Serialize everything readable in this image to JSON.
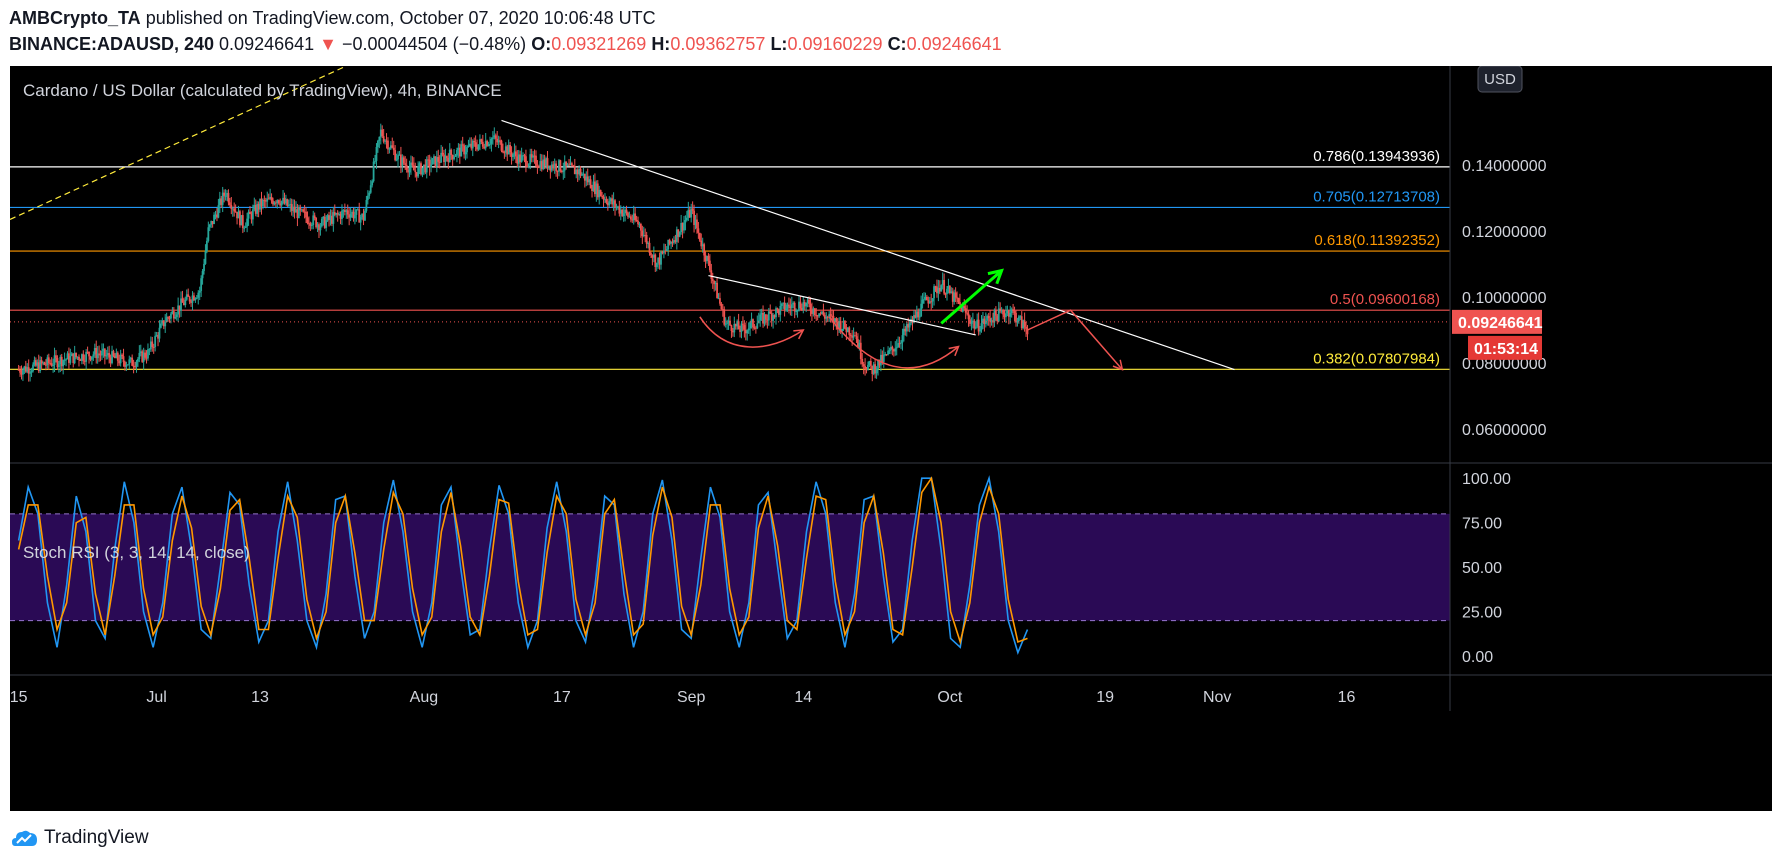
{
  "header": {
    "author": "AMBCrypto_TA",
    "published": "published on TradingView.com, October 07, 2020 10:06:48 UTC",
    "symbol": "BINANCE:ADAUSD, 240",
    "last": "0.09246641",
    "change_arrow": "▼",
    "change": "−0.00044504 (−0.48%)",
    "o_label": "O:",
    "o": "0.09321269",
    "h_label": "H:",
    "h": "0.09362757",
    "l_label": "L:",
    "l": "0.09160229",
    "c_label": "C:",
    "c": "0.09246641"
  },
  "footer": {
    "brand": "TradingView"
  },
  "colors": {
    "background": "#000000",
    "up": "#26a69a",
    "down": "#ef5350",
    "fib_white": "#ffffff",
    "fib_blue": "#2196f3",
    "fib_orange": "#ff9800",
    "fib_red": "#ef5350",
    "fib_yellow": "#ffeb3b",
    "stoch_k": "#2196f3",
    "stoch_d": "#ff9800",
    "stoch_band": "#2a0a55"
  },
  "chart_data": [
    {
      "type": "candlestick",
      "title": "Cardano / US Dollar (calculated by TradingView), 4h, BINANCE",
      "currency_badge": "USD",
      "ylim": [
        0.05,
        0.17
      ],
      "y_ticks": [
        "0.06000000",
        "0.08000000",
        "0.10000000",
        "0.12000000",
        "0.14000000"
      ],
      "y_tick_values": [
        0.06,
        0.08,
        0.1,
        0.12,
        0.14
      ],
      "x_ticks": [
        "15",
        "Jul",
        "13",
        "Aug",
        "17",
        "Sep",
        "14",
        "Oct",
        "19",
        "Nov",
        "16"
      ],
      "x_tick_days": [
        0,
        16,
        28,
        47,
        63,
        78,
        91,
        108,
        126,
        139,
        154
      ],
      "xlim_days": [
        -1,
        166
      ],
      "price_path": [
        [
          0,
          0.078
        ],
        [
          2,
          0.079
        ],
        [
          5,
          0.081
        ],
        [
          9,
          0.083
        ],
        [
          13,
          0.08
        ],
        [
          15,
          0.083
        ],
        [
          17,
          0.093
        ],
        [
          19,
          0.098
        ],
        [
          21,
          0.102
        ],
        [
          22,
          0.12
        ],
        [
          24,
          0.132
        ],
        [
          26,
          0.122
        ],
        [
          28,
          0.128
        ],
        [
          30,
          0.13
        ],
        [
          32,
          0.126
        ],
        [
          35,
          0.122
        ],
        [
          38,
          0.126
        ],
        [
          40,
          0.124
        ],
        [
          42,
          0.15
        ],
        [
          44,
          0.142
        ],
        [
          46,
          0.138
        ],
        [
          49,
          0.142
        ],
        [
          52,
          0.145
        ],
        [
          55,
          0.148
        ],
        [
          58,
          0.142
        ],
        [
          62,
          0.14
        ],
        [
          65,
          0.138
        ],
        [
          68,
          0.13
        ],
        [
          72,
          0.122
        ],
        [
          74,
          0.11
        ],
        [
          76,
          0.118
        ],
        [
          78,
          0.126
        ],
        [
          80,
          0.11
        ],
        [
          82,
          0.092
        ],
        [
          84,
          0.09
        ],
        [
          86,
          0.093
        ],
        [
          89,
          0.097
        ],
        [
          91,
          0.098
        ],
        [
          93,
          0.095
        ],
        [
          95,
          0.092
        ],
        [
          97,
          0.089
        ],
        [
          98,
          0.08
        ],
        [
          99,
          0.078
        ],
        [
          101,
          0.083
        ],
        [
          103,
          0.09
        ],
        [
          105,
          0.098
        ],
        [
          107,
          0.104
        ],
        [
          109,
          0.098
        ],
        [
          111,
          0.091
        ],
        [
          113,
          0.094
        ],
        [
          115,
          0.096
        ],
        [
          117,
          0.09
        ]
      ],
      "last_price": 0.09246641,
      "last_price_label": "0.09246641",
      "countdown_label": "01:53:14",
      "fib_levels": [
        {
          "label": "0.786(0.13943936)",
          "value": 0.13943936,
          "color": "#ffffff"
        },
        {
          "label": "0.705(0.12713708)",
          "value": 0.12713708,
          "color": "#2196f3"
        },
        {
          "label": "0.618(0.11392352)",
          "value": 0.11392352,
          "color": "#ff9800"
        },
        {
          "label": "0.5(0.09600168)",
          "value": 0.09600168,
          "color": "#ef5350"
        },
        {
          "label": "0.382(0.07807984)",
          "value": 0.07807984,
          "color": "#ffeb3b"
        }
      ],
      "trendlines": [
        {
          "name": "descending-resistance",
          "from": [
            56,
            0.1535
          ],
          "to": [
            141,
            0.078
          ],
          "color": "#ffffff"
        },
        {
          "name": "lower-channel-line",
          "from": [
            80,
            0.1065
          ],
          "to": [
            111,
            0.0885
          ],
          "color": "#ffffff"
        },
        {
          "name": "prior-uptrend-dashed",
          "from": [
            -1,
            0.1235
          ],
          "to": [
            38,
            0.17
          ],
          "color": "#ffeb3b",
          "dashed": true
        }
      ],
      "annotations": [
        {
          "name": "green-arrow",
          "color": "#00ff00",
          "path": [
            [
              107,
              0.092
            ],
            [
              114,
              0.108
            ]
          ]
        },
        {
          "name": "red-curve-1",
          "color": "#ef5350",
          "path": [
            [
              79,
              0.094
            ],
            [
              82,
              0.082
            ],
            [
              87,
              0.083
            ],
            [
              91,
              0.09
            ]
          ]
        },
        {
          "name": "red-curve-2",
          "color": "#ef5350",
          "path": [
            [
              94,
              0.094
            ],
            [
              99,
              0.077
            ],
            [
              104,
              0.074
            ],
            [
              109,
              0.085
            ]
          ]
        },
        {
          "name": "red-forecast",
          "color": "#ef5350",
          "path": [
            [
              117,
              0.09
            ],
            [
              122,
              0.096
            ],
            [
              128,
              0.078
            ]
          ]
        }
      ]
    },
    {
      "type": "line",
      "title": "Stoch RSI (3, 3, 14, 14, close)",
      "ylim": [
        -10,
        108
      ],
      "y_ticks": [
        "0.00",
        "25.00",
        "50.00",
        "75.00",
        "100.00"
      ],
      "y_tick_values": [
        0,
        25,
        50,
        75,
        100
      ],
      "band": [
        20,
        80
      ],
      "series": [],
      "k_values": [
        65,
        95,
        80,
        30,
        5,
        40,
        90,
        70,
        20,
        10,
        60,
        98,
        75,
        25,
        5,
        30,
        80,
        95,
        60,
        15,
        10,
        50,
        92,
        85,
        40,
        8,
        20,
        70,
        98,
        65,
        20,
        5,
        35,
        88,
        90,
        45,
        10,
        25,
        75,
        99,
        70,
        25,
        5,
        30,
        85,
        95,
        50,
        12,
        15,
        60,
        96,
        80,
        30,
        5,
        20,
        72,
        98,
        70,
        20,
        8,
        40,
        90,
        85,
        35,
        5,
        25,
        80,
        99,
        65,
        15,
        10,
        55,
        95,
        78,
        25,
        5,
        30,
        85,
        92,
        50,
        10,
        20,
        70,
        98,
        80,
        30,
        5,
        35,
        88,
        90,
        45,
        8,
        15,
        65,
        100,
        100,
        60,
        10,
        5,
        40,
        85,
        100,
        70,
        20,
        2,
        15
      ],
      "d_values": [
        60,
        85,
        85,
        45,
        15,
        30,
        75,
        78,
        35,
        12,
        45,
        85,
        85,
        38,
        12,
        22,
        65,
        90,
        72,
        28,
        12,
        38,
        82,
        88,
        55,
        15,
        15,
        55,
        90,
        78,
        32,
        10,
        25,
        75,
        90,
        58,
        20,
        20,
        60,
        92,
        80,
        38,
        12,
        22,
        70,
        92,
        62,
        22,
        12,
        45,
        88,
        86,
        42,
        12,
        15,
        58,
        90,
        80,
        32,
        12,
        30,
        80,
        88,
        48,
        12,
        18,
        68,
        95,
        78,
        28,
        12,
        40,
        85,
        85,
        38,
        12,
        22,
        72,
        90,
        62,
        20,
        15,
        55,
        90,
        88,
        42,
        12,
        25,
        75,
        90,
        58,
        15,
        12,
        50,
        92,
        100,
        75,
        25,
        8,
        30,
        75,
        95,
        80,
        32,
        8,
        10
      ]
    }
  ]
}
